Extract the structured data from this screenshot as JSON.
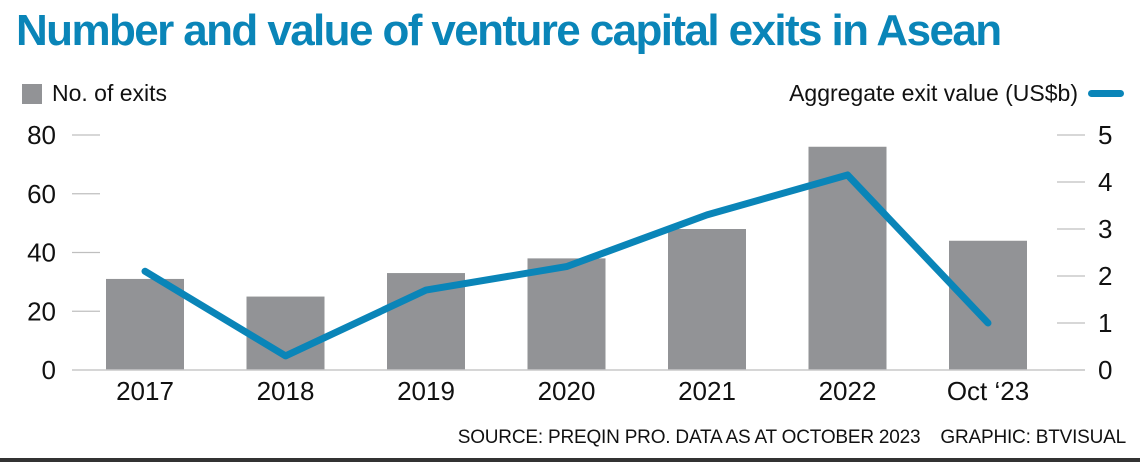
{
  "chart_data": {
    "type": "bar",
    "title": "Number and value of venture capital exits in Asean",
    "categories": [
      "2017",
      "2018",
      "2019",
      "2020",
      "2021",
      "2022",
      "Oct ‘23"
    ],
    "series": [
      {
        "name": "No. of exits",
        "type": "bar",
        "axis": "left",
        "color": "#929396",
        "values": [
          31,
          25,
          33,
          38,
          48,
          76,
          44
        ]
      },
      {
        "name": "Aggregate exit value (US$b)",
        "type": "line",
        "axis": "right",
        "color": "#0a85b8",
        "values": [
          2.1,
          0.3,
          1.7,
          2.2,
          3.3,
          4.15,
          1.0
        ]
      }
    ],
    "y_left": {
      "label": "",
      "ylim": [
        0,
        80
      ],
      "ticks": [
        "0",
        "20",
        "40",
        "60",
        "80"
      ]
    },
    "y_right": {
      "label": "",
      "ylim": [
        0,
        5
      ],
      "ticks": [
        "0",
        "1",
        "2",
        "3",
        "4",
        "5"
      ]
    },
    "xlabel": "",
    "grid": false,
    "legend": [
      {
        "label": "No. of exits",
        "placement": "top-left"
      },
      {
        "label": "Aggregate exit value (US$b)",
        "placement": "top-right"
      }
    ]
  },
  "footer": {
    "source": "SOURCE: PREQIN PRO. DATA AS AT OCTOBER 2023",
    "graphic": "GRAPHIC: BTVISUAL"
  }
}
